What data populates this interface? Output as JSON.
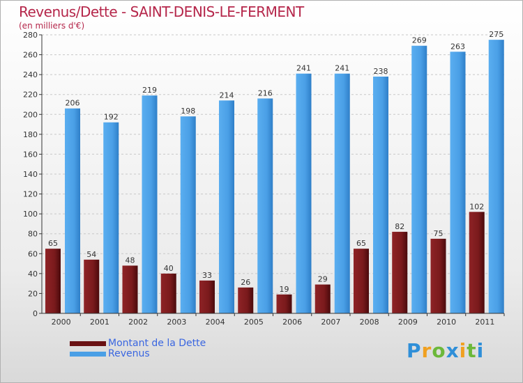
{
  "header": {
    "title": "Revenus/Dette - SAINT-DENIS-LE-FERMENT",
    "subtitle": "(en milliers d'€)"
  },
  "colors": {
    "dette": "#7a1a1c",
    "revenus": "#4a9fe6",
    "title": "#b5264a",
    "legend_text": "#3a66e0"
  },
  "chart_data": {
    "type": "bar",
    "categories": [
      "2000",
      "2001",
      "2002",
      "2003",
      "2004",
      "2005",
      "2006",
      "2007",
      "2008",
      "2009",
      "2010",
      "2011"
    ],
    "series": [
      {
        "name": "Montant de la Dette",
        "values": [
          65,
          54,
          48,
          40,
          33,
          26,
          19,
          29,
          65,
          82,
          75,
          102
        ]
      },
      {
        "name": "Revenus",
        "values": [
          206,
          192,
          219,
          198,
          214,
          216,
          241,
          241,
          238,
          269,
          263,
          275
        ]
      }
    ],
    "title": "Revenus/Dette - SAINT-DENIS-LE-FERMENT",
    "ylabel": "(en milliers d'€)",
    "xlabel": "",
    "ylim": [
      0,
      280
    ],
    "yticks": [
      0,
      20,
      40,
      60,
      80,
      100,
      120,
      140,
      160,
      180,
      200,
      220,
      240,
      260,
      280
    ],
    "grid": true,
    "legend": "bottom-left"
  },
  "logo": {
    "letters": [
      "P",
      "r",
      "o",
      "x",
      "i",
      "t",
      "i"
    ],
    "colors": [
      "#2f8fd8",
      "#f0a020",
      "#6cb83a",
      "#2f8fd8",
      "#f0a020",
      "#6cb83a",
      "#2f8fd8"
    ]
  }
}
